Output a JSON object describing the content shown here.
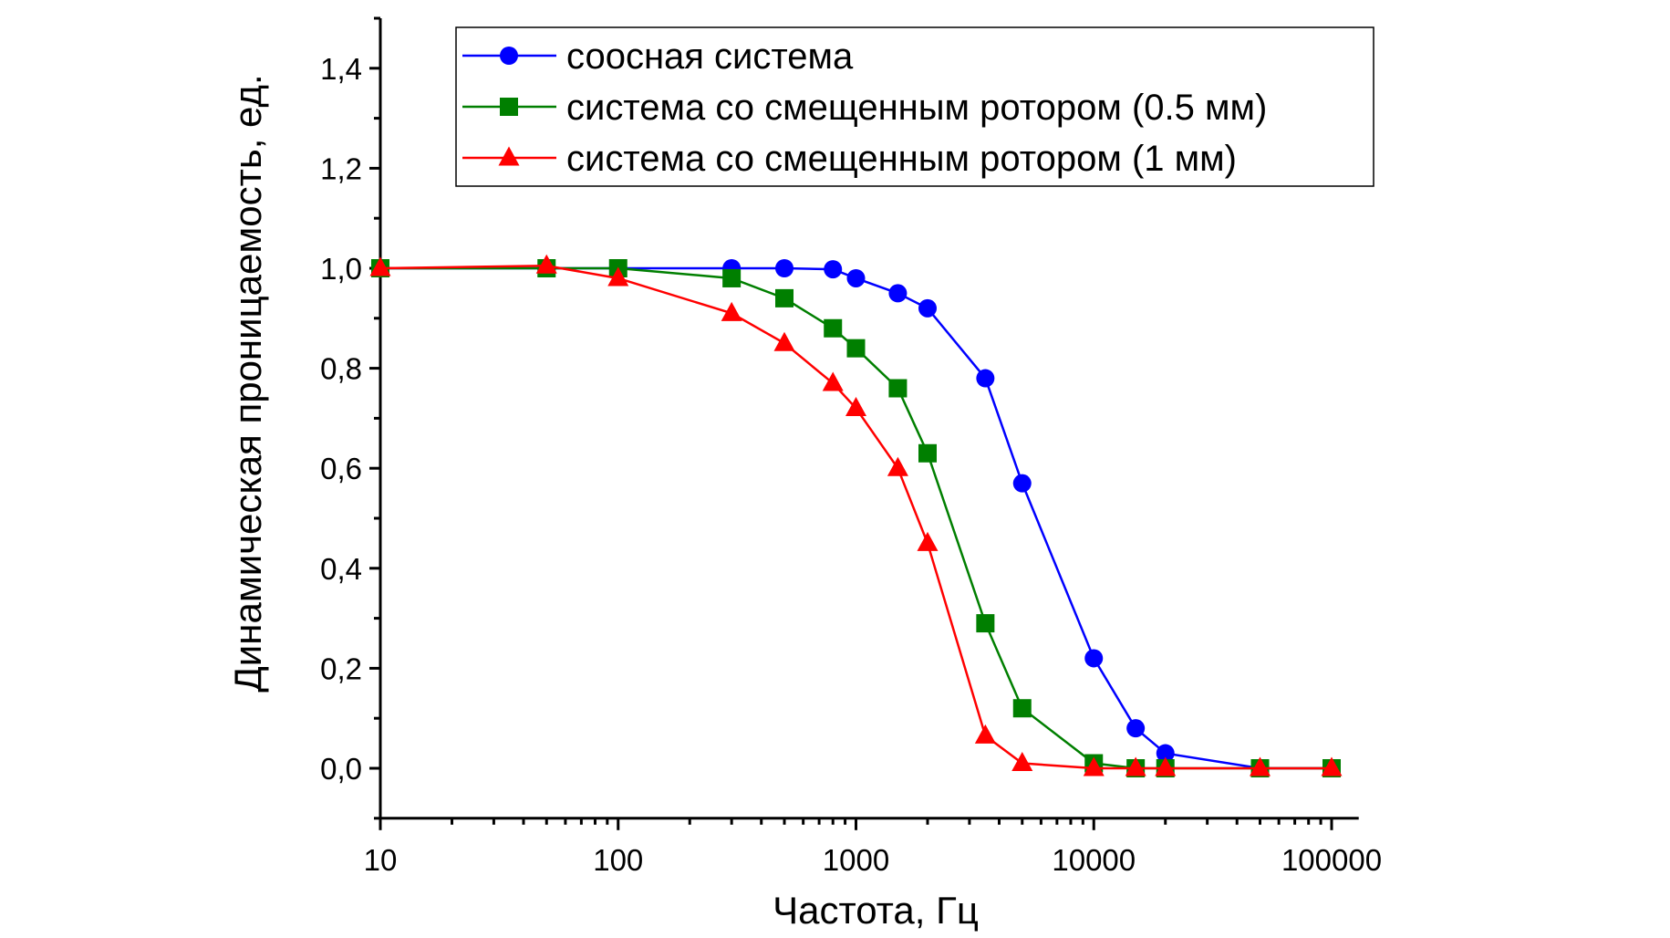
{
  "chart_data": {
    "type": "line",
    "title": "",
    "xlabel": "Частота, Гц",
    "ylabel": "Динамическая проницаемость, ед.",
    "xscale": "log",
    "xlim": [
      10,
      130000
    ],
    "ylim": [
      -0.1,
      1.5
    ],
    "grid": false,
    "legend_position": "top-right",
    "xticks": [
      10,
      100,
      1000,
      10000,
      100000
    ],
    "xtick_labels": [
      "10",
      "100",
      "1000",
      "10000",
      "100000"
    ],
    "yticks": [
      0,
      0.2,
      0.4,
      0.6,
      0.8,
      1.0,
      1.2,
      1.4
    ],
    "ytick_labels": [
      "0,0",
      "0,2",
      "0,4",
      "0,6",
      "0,8",
      "1,0",
      "1,2",
      "1,4"
    ],
    "x": [
      10,
      50,
      100,
      300,
      500,
      800,
      1000,
      1500,
      2000,
      3500,
      5000,
      10000,
      15000,
      20000,
      50000,
      100000
    ],
    "series": [
      {
        "name": "соосная система",
        "color": "#0000ff",
        "marker": "circle",
        "values": [
          1.0,
          1.0,
          1.0,
          1.0,
          1.0,
          0.998,
          0.98,
          0.95,
          0.92,
          0.78,
          0.57,
          0.22,
          0.08,
          0.03,
          0.0,
          0.0
        ]
      },
      {
        "name": "система со смещенным ротором (0.5 мм)",
        "color": "#007f00",
        "marker": "square",
        "values": [
          1.0,
          1.0,
          1.0,
          0.98,
          0.94,
          0.88,
          0.84,
          0.76,
          0.63,
          0.29,
          0.12,
          0.01,
          0.0,
          0.0,
          0.0,
          0.0
        ]
      },
      {
        "name": "система со смещенным ротором (1 мм)",
        "color": "#ff0000",
        "marker": "triangle",
        "values": [
          1.0,
          1.005,
          0.98,
          0.91,
          0.85,
          0.77,
          0.72,
          0.6,
          0.45,
          0.065,
          0.01,
          0.0,
          0.0,
          0.0,
          0.0,
          0.0
        ]
      }
    ]
  }
}
